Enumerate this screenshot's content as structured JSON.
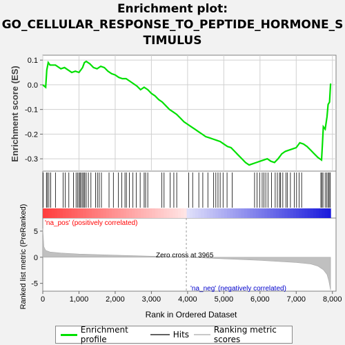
{
  "title_lines": [
    "Enrichment plot:",
    "GO_CELLULAR_RESPONSE_TO_PEPTIDE_HORMONE_S",
    "TIMULUS"
  ],
  "legend": [
    {
      "label": "Enrichment profile",
      "color": "#00e000"
    },
    {
      "label": "Hits",
      "color": "#606060"
    },
    {
      "label": "Ranking metric scores",
      "color": "#c8c8c8"
    }
  ],
  "chart_data": {
    "type": "line",
    "top_panel": {
      "ylabel": "Enrichment score (ES)",
      "ylim": [
        -0.35,
        0.12
      ],
      "yticks": [
        0.1,
        0.0,
        -0.1,
        -0.2,
        -0.3
      ],
      "ytick_labels": [
        "0.1",
        "0.0",
        "-0.1",
        "-0.2",
        "-0.3"
      ],
      "series": [
        {
          "color": "#00e000",
          "x": [
            0,
            80,
            110,
            150,
            200,
            350,
            500,
            600,
            700,
            800,
            900,
            1000,
            1100,
            1150,
            1200,
            1300,
            1400,
            1500,
            1600,
            1700,
            1800,
            1900,
            2000,
            2100,
            2200,
            2300,
            2400,
            2500,
            2600,
            2700,
            2800,
            2900,
            3000,
            3100,
            3200,
            3300,
            3400,
            3500,
            3600,
            3700,
            3800,
            3900,
            4000,
            4100,
            4200,
            4300,
            4400,
            4500,
            4600,
            4700,
            4800,
            4900,
            5000,
            5100,
            5200,
            5300,
            5400,
            5500,
            5600,
            5700,
            5800,
            5900,
            6000,
            6100,
            6200,
            6300,
            6400,
            6500,
            6550,
            6600,
            6700,
            6800,
            6900,
            7000,
            7100,
            7200,
            7300,
            7400,
            7500,
            7600,
            7700,
            7720,
            7750,
            7800,
            7850,
            7880,
            7920,
            7950
          ],
          "y": [
            0.0,
            -0.01,
            0.06,
            0.09,
            0.08,
            0.08,
            0.065,
            0.07,
            0.06,
            0.05,
            0.055,
            0.05,
            0.07,
            0.09,
            0.095,
            0.085,
            0.07,
            0.065,
            0.075,
            0.07,
            0.055,
            0.045,
            0.04,
            0.03,
            0.025,
            0.025,
            0.015,
            0.005,
            -0.005,
            -0.02,
            -0.01,
            -0.02,
            -0.035,
            -0.045,
            -0.06,
            -0.07,
            -0.085,
            -0.1,
            -0.11,
            -0.12,
            -0.135,
            -0.15,
            -0.16,
            -0.17,
            -0.18,
            -0.19,
            -0.2,
            -0.21,
            -0.215,
            -0.22,
            -0.225,
            -0.23,
            -0.24,
            -0.25,
            -0.255,
            -0.27,
            -0.285,
            -0.3,
            -0.315,
            -0.325,
            -0.32,
            -0.315,
            -0.31,
            -0.305,
            -0.3,
            -0.31,
            -0.315,
            -0.3,
            -0.29,
            -0.28,
            -0.27,
            -0.265,
            -0.26,
            -0.255,
            -0.235,
            -0.24,
            -0.25,
            -0.265,
            -0.28,
            -0.295,
            -0.305,
            -0.25,
            -0.17,
            -0.18,
            -0.13,
            -0.08,
            -0.07,
            0.005
          ]
        }
      ]
    },
    "hits": [
      10,
      100,
      130,
      170,
      220,
      350,
      560,
      620,
      720,
      850,
      920,
      960,
      1000,
      1030,
      1060,
      1100,
      1130,
      1160,
      1200,
      1260,
      1330,
      1460,
      1510,
      1560,
      1620,
      1830,
      1950,
      2090,
      2180,
      2270,
      2310,
      2390,
      2490,
      2580,
      2690,
      2800,
      2840,
      2900,
      3290,
      3350,
      3520,
      3620,
      3700,
      4030,
      4140,
      4310,
      4420,
      4560,
      4720,
      4780,
      4840,
      4900,
      4980,
      5090,
      5230,
      5850,
      5920,
      5990,
      6060,
      6110,
      6160,
      6220,
      6320,
      6420,
      6480,
      6540,
      6570,
      6630,
      6720,
      6760,
      6840,
      6950,
      7010,
      7080,
      7150,
      7680,
      7710,
      7740,
      7800,
      7840,
      7880,
      7910,
      7940
    ],
    "ranked_metric": {
      "ylabel": "Ranked list metric (PreRanked)",
      "ylim": [
        -6.5,
        7.5
      ],
      "yticks": [
        5,
        0,
        -5
      ],
      "ytick_labels": [
        "5",
        "0",
        "-5"
      ],
      "x": [
        0,
        30,
        80,
        200,
        500,
        1000,
        2000,
        3000,
        3965,
        5000,
        6000,
        7000,
        7400,
        7600,
        7750,
        7850,
        7900,
        7950
      ],
      "values": [
        5.5,
        2.0,
        1.3,
        1.0,
        0.8,
        0.6,
        0.4,
        0.2,
        0.0,
        -0.3,
        -0.6,
        -1.0,
        -1.3,
        -1.7,
        -2.4,
        -3.3,
        -4.5,
        -6.3
      ]
    },
    "positive_label": "'na_pos' (positively correlated)",
    "negative_label": "'na_neg' (negatively correlated)",
    "zero_cross_label": "Zero cross at 3965",
    "zero_cross": 3965,
    "xlabel": "Rank in Ordered Dataset",
    "xlim": [
      0,
      8100
    ],
    "xticks": [
      0,
      1000,
      2000,
      3000,
      4000,
      5000,
      6000,
      7000,
      8000
    ],
    "xtick_labels": [
      "0",
      "1,000",
      "2,000",
      "3,000",
      "4,000",
      "5,000",
      "6,000",
      "7,000",
      "8,000"
    ],
    "n_genes": 7950,
    "colors": {
      "pos_text": "#ff0000",
      "neg_text": "#0000cc",
      "grid": "#d0d0d0"
    }
  }
}
